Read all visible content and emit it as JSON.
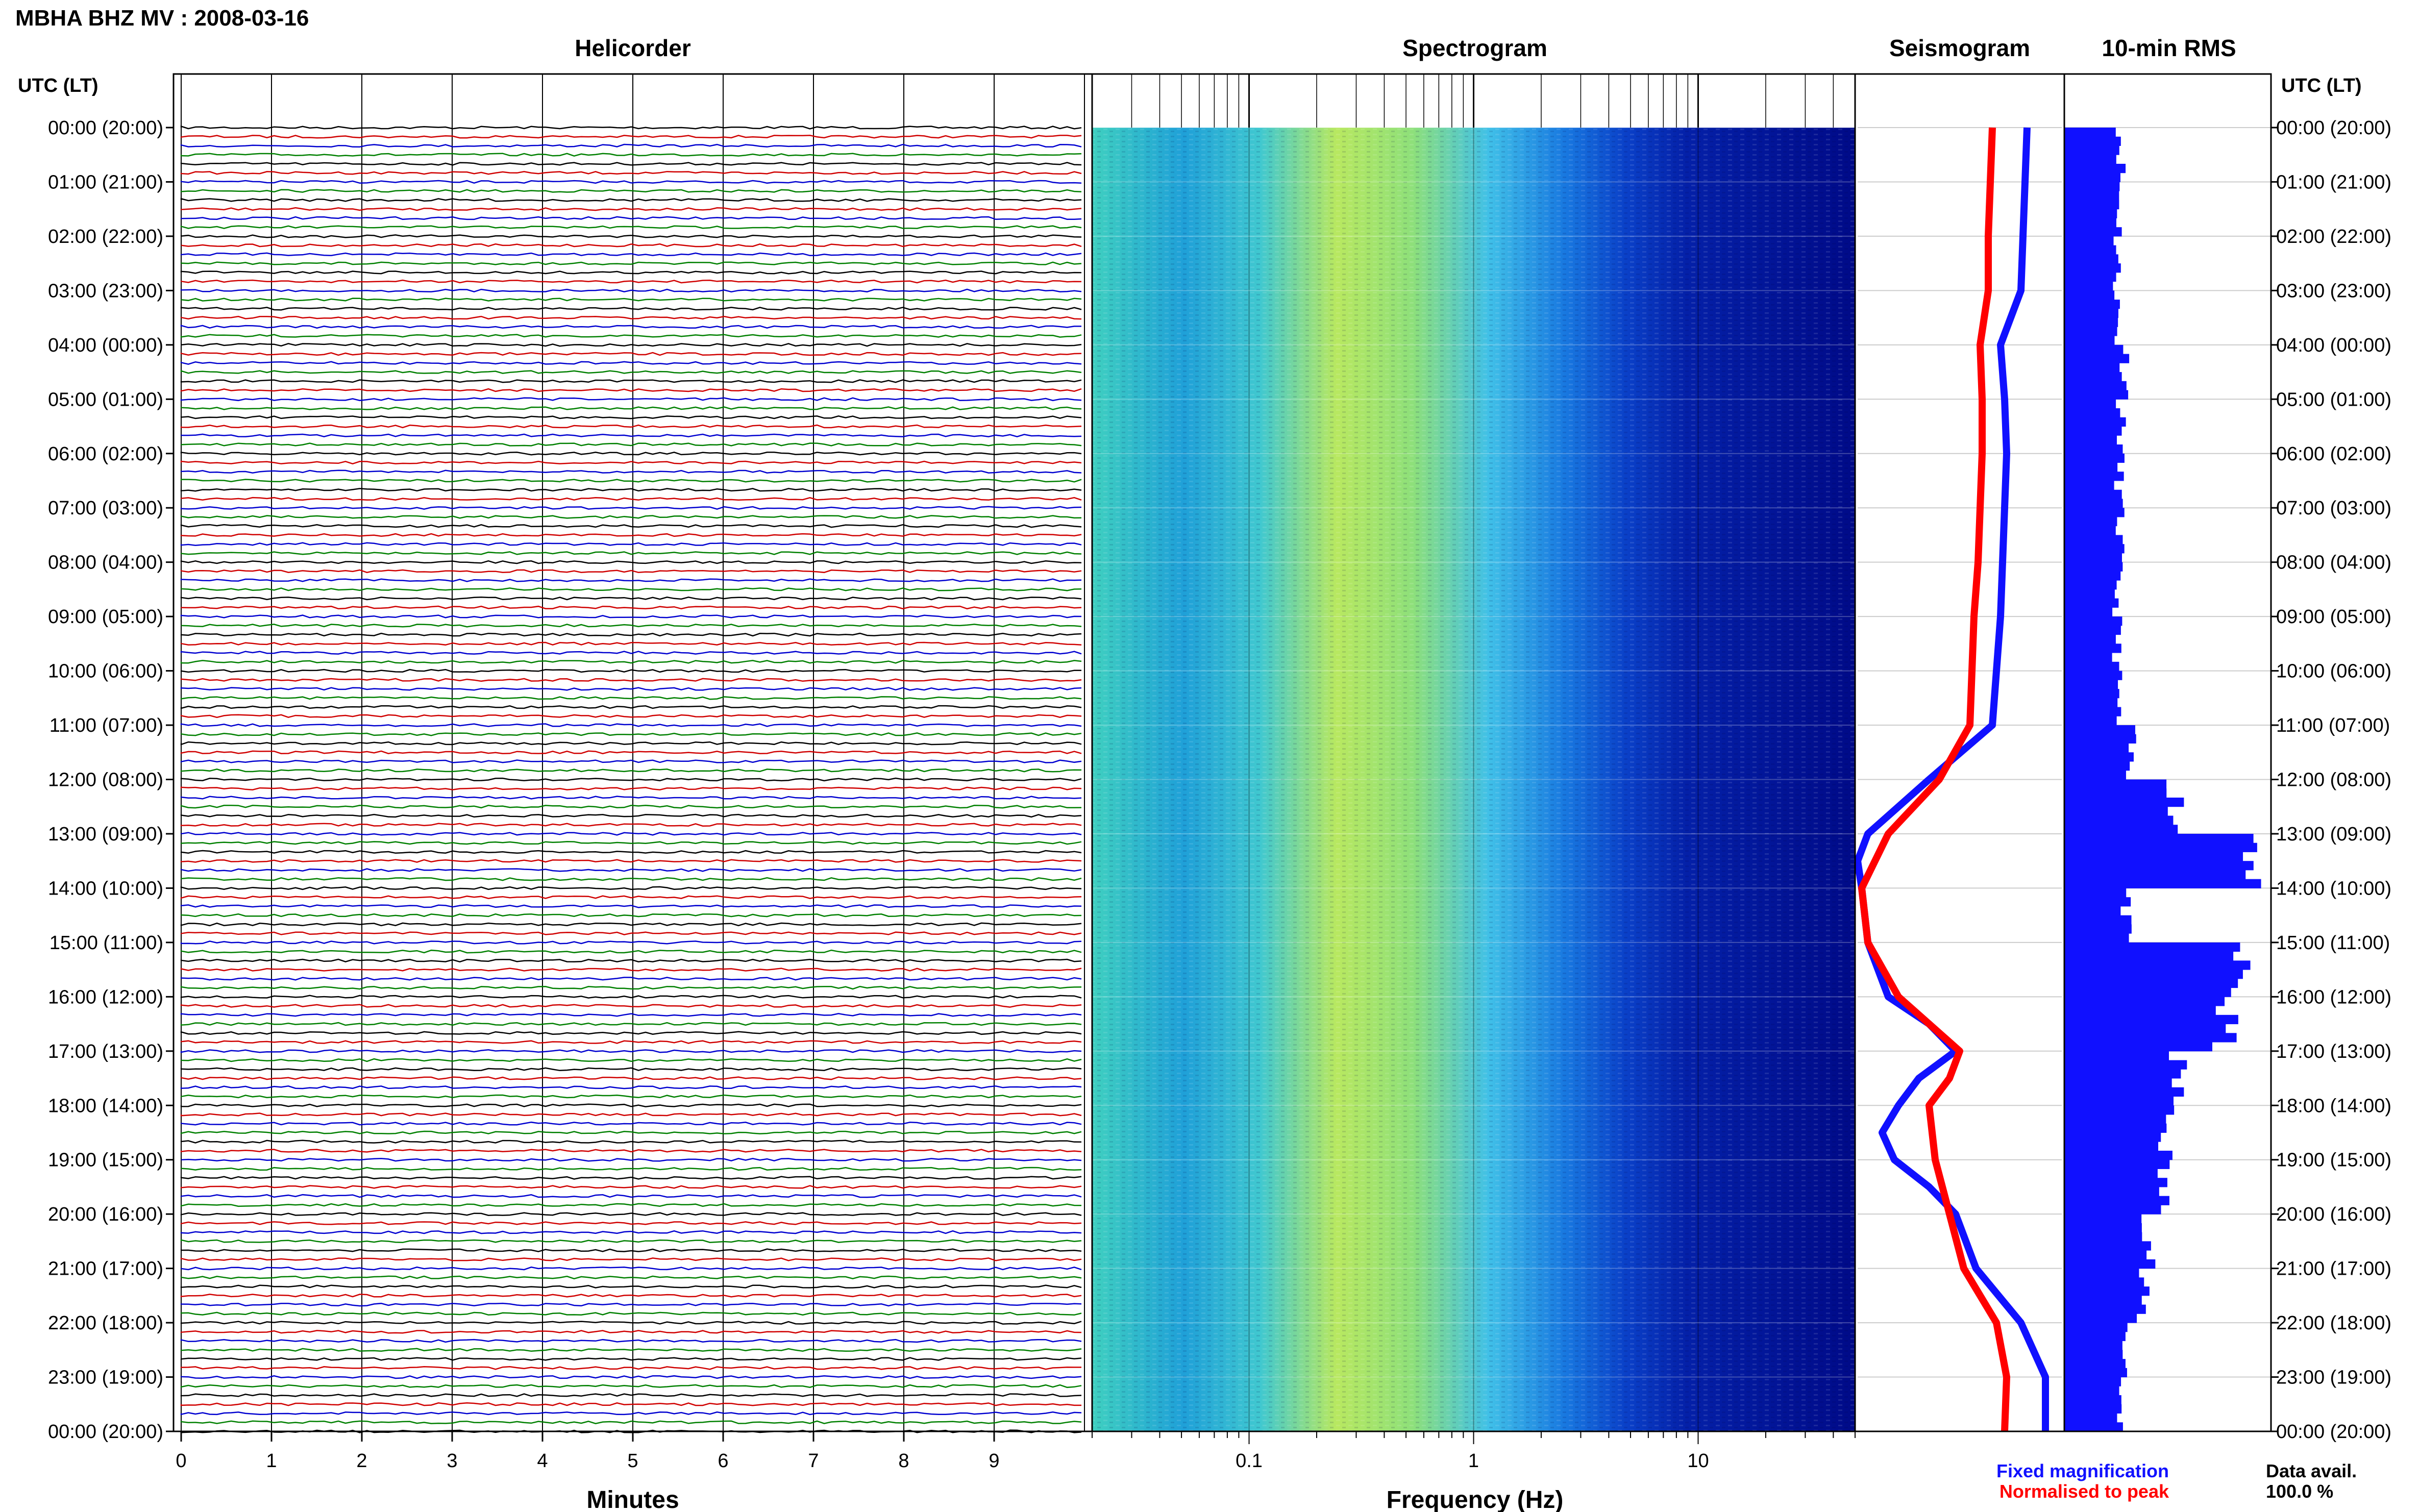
{
  "header": {
    "title": "MBHA BHZ MV : 2008-03-16",
    "utc_label_left": "UTC (LT)",
    "utc_label_right": "UTC (LT)"
  },
  "panels": {
    "helicorder": "Helicorder",
    "spectrogram": "Spectrogram",
    "seismogram": "Seismogram",
    "rms": "10-min RMS"
  },
  "legend": {
    "fixed": "Fixed magnification",
    "normalised": "Normalised to peak",
    "fixed_color": "#1010ff",
    "normalised_color": "#ff0000"
  },
  "data_avail": {
    "label": "Data avail.",
    "value": "100.0 %"
  },
  "time_labels": [
    "00:00 (20:00)",
    "01:00 (21:00)",
    "02:00 (22:00)",
    "03:00 (23:00)",
    "04:00 (00:00)",
    "05:00 (01:00)",
    "06:00 (02:00)",
    "07:00 (03:00)",
    "08:00 (04:00)",
    "09:00 (05:00)",
    "10:00 (06:00)",
    "11:00 (07:00)",
    "12:00 (08:00)",
    "13:00 (09:00)",
    "14:00 (10:00)",
    "15:00 (11:00)",
    "16:00 (12:00)",
    "17:00 (13:00)",
    "18:00 (14:00)",
    "19:00 (15:00)",
    "20:00 (16:00)",
    "21:00 (17:00)",
    "22:00 (18:00)",
    "23:00 (19:00)",
    "00:00 (20:00)"
  ],
  "chart_data": [
    {
      "type": "line",
      "panel": "Helicorder",
      "xlabel": "Minutes",
      "x_ticks": [
        "0",
        "1",
        "2",
        "3",
        "4",
        "5",
        "6",
        "7",
        "8",
        "9"
      ],
      "xlim": [
        0,
        10
      ],
      "traces_per_hour": 6,
      "trace_colors": [
        "#000000",
        "#d00000",
        "#0000d0",
        "#008000"
      ]
    },
    {
      "type": "heatmap",
      "panel": "Spectrogram",
      "xlabel": "Frequency (Hz)",
      "x_ticks": [
        "0.1",
        "1",
        "10"
      ],
      "x_scale": "log",
      "xlim": [
        0.02,
        50
      ]
    },
    {
      "type": "line",
      "panel": "Seismogram",
      "series": [
        {
          "name": "Fixed magnification",
          "color": "#1010ff",
          "points": [
            [
              0,
              0.83
            ],
            [
              1,
              0.82
            ],
            [
              2,
              0.81
            ],
            [
              3,
              0.8
            ],
            [
              4,
              0.7
            ],
            [
              5,
              0.72
            ],
            [
              6,
              0.73
            ],
            [
              7,
              0.72
            ],
            [
              8,
              0.71
            ],
            [
              9,
              0.7
            ],
            [
              10,
              0.68
            ],
            [
              11,
              0.66
            ],
            [
              12,
              0.35
            ],
            [
              13,
              0.05
            ],
            [
              13.5,
              0.0
            ],
            [
              14,
              0.02
            ],
            [
              15,
              0.05
            ],
            [
              16,
              0.15
            ],
            [
              16.5,
              0.35
            ],
            [
              17,
              0.48
            ],
            [
              17.5,
              0.3
            ],
            [
              18,
              0.2
            ],
            [
              18.5,
              0.12
            ],
            [
              19,
              0.18
            ],
            [
              19.5,
              0.35
            ],
            [
              20,
              0.48
            ],
            [
              21,
              0.58
            ],
            [
              22,
              0.8
            ],
            [
              23,
              0.92
            ],
            [
              24,
              0.92
            ]
          ]
        },
        {
          "name": "Normalised to peak",
          "color": "#ff0000",
          "points": [
            [
              0,
              0.66
            ],
            [
              1,
              0.65
            ],
            [
              2,
              0.64
            ],
            [
              3,
              0.64
            ],
            [
              4,
              0.6
            ],
            [
              5,
              0.61
            ],
            [
              6,
              0.61
            ],
            [
              7,
              0.6
            ],
            [
              8,
              0.59
            ],
            [
              9,
              0.57
            ],
            [
              10,
              0.56
            ],
            [
              11,
              0.55
            ],
            [
              12,
              0.4
            ],
            [
              13,
              0.15
            ],
            [
              14,
              0.02
            ],
            [
              15,
              0.05
            ],
            [
              16,
              0.2
            ],
            [
              17,
              0.5
            ],
            [
              17.5,
              0.45
            ],
            [
              18,
              0.35
            ],
            [
              19,
              0.38
            ],
            [
              20,
              0.45
            ],
            [
              21,
              0.52
            ],
            [
              22,
              0.68
            ],
            [
              23,
              0.73
            ],
            [
              24,
              0.72
            ]
          ]
        }
      ]
    },
    {
      "type": "bar",
      "panel": "10-min RMS",
      "orientation": "horizontal",
      "bin_minutes": 10,
      "hourly_values": [
        0.28,
        0.27,
        0.26,
        0.26,
        0.3,
        0.28,
        0.27,
        0.27,
        0.26,
        0.26,
        0.26,
        0.32,
        0.55,
        0.95,
        0.3,
        0.85,
        0.78,
        0.55,
        0.5,
        0.48,
        0.42,
        0.38,
        0.3,
        0.28
      ]
    }
  ]
}
